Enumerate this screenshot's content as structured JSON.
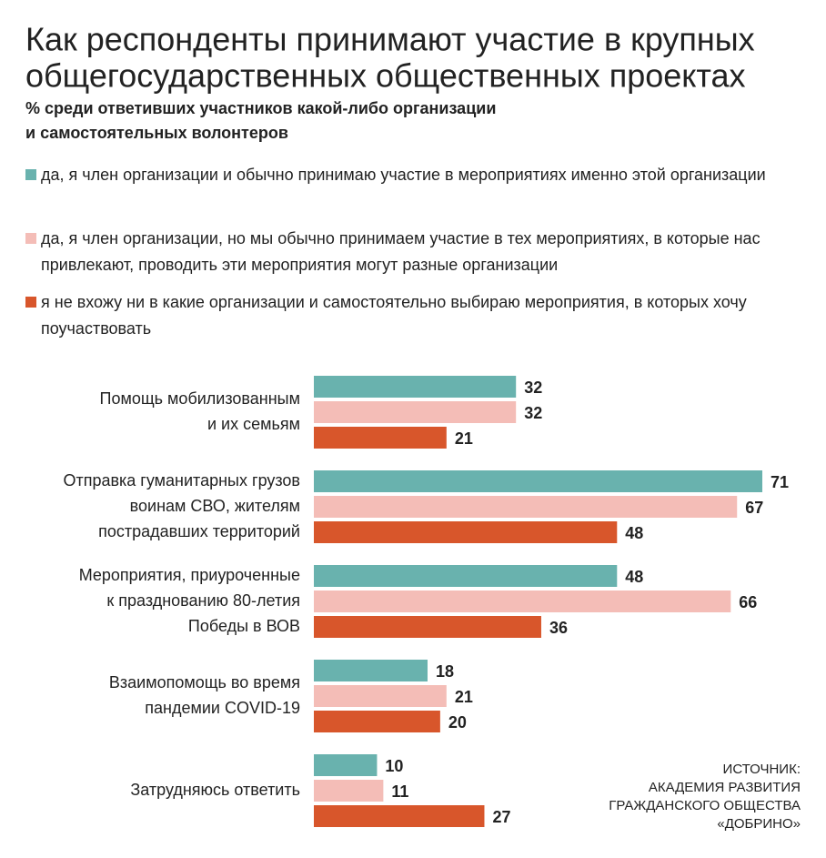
{
  "chart_data": {
    "type": "hbar",
    "title": [
      "Как респонденты принимают участие в крупных",
      "общегосударственных общественных проектах"
    ],
    "subtitle": [
      "% среди ответивших участников какой-либо организации",
      "и самостоятельных волонтеров"
    ],
    "categories": [
      [
        "Помощь мобилизованным",
        "и их семьям"
      ],
      [
        "Отправка гуманитарных грузов",
        "воинам СВО, жителям",
        "пострадавших территорий"
      ],
      [
        "Мероприятия, приуроченные",
        "к празднованию 80-летия",
        "Победы в ВОВ"
      ],
      [
        "Взаимопомощь во время",
        "пандемии COVID-19"
      ],
      [
        "Затрудняюсь ответить"
      ]
    ],
    "series": [
      {
        "name": "да, я член организации и обычно принимаю участие в мероприятиях именно этой организации",
        "color": "#69b2ae",
        "values": [
          32,
          71,
          48,
          18,
          10
        ]
      },
      {
        "name": "да, я член организации, но мы обычно принимаем участие в тех мероприятиях, в которые нас привлекают, проводить эти мероприятия могут разные организации",
        "color": "#f4bdb7",
        "values": [
          32,
          67,
          66,
          21,
          11
        ]
      },
      {
        "name": "я не вхожу ни в какие организации и самостоятельно выбираю мероприятия, в которых хочу поучаствовать",
        "color": "#d8562b",
        "values": [
          21,
          48,
          36,
          20,
          27
        ]
      }
    ],
    "source": [
      "ИСТОЧНИК:",
      "АКАДЕМИЯ РАЗВИТИЯ",
      "ГРАЖДАНСКОГО ОБЩЕСТВА",
      "«ДОБРИНО»"
    ]
  }
}
